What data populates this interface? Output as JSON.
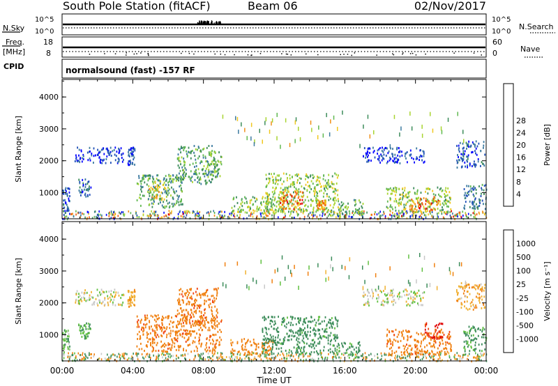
{
  "header": {
    "title": "South Pole Station (fitACF)",
    "beam": "Beam 06",
    "date": "02/Nov/2017"
  },
  "strip_panels": {
    "nsky": {
      "label": "N.Sky",
      "ticks": [
        "10^5",
        "10^0"
      ]
    },
    "nsearch": {
      "label": "N.Search",
      "ticks": [
        "10^5",
        "10^0"
      ]
    },
    "freq": {
      "label_top": "Freq.",
      "label_bottom": "[MHz]",
      "ticks": [
        "18",
        "8"
      ]
    },
    "nave": {
      "label": "Nave",
      "ticks": [
        "60",
        "0"
      ]
    },
    "cpid": {
      "label": "CPID",
      "value": "normalsound (fast) -157 RF"
    }
  },
  "chart_data": [
    {
      "type": "heatmap",
      "name": "power",
      "ylabel": "Slant Range [km]",
      "xlabel": "Time UT",
      "xlim": [
        0,
        24
      ],
      "ylim": [
        180,
        4550
      ],
      "x_ticks": [
        "00:00",
        "04:00",
        "08:00",
        "12:00",
        "16:00",
        "20:00",
        "00:00"
      ],
      "y_ticks": [
        "1000",
        "2000",
        "3000",
        "4000"
      ],
      "colorbar": {
        "label": "Power [dB]",
        "range": [
          0,
          32
        ],
        "ticks": [
          "4",
          "8",
          "12",
          "16",
          "20",
          "24",
          "28"
        ],
        "colors": [
          "#0000ff",
          "#2050b8",
          "#3c7aa0",
          "#3c8c5a",
          "#60b850",
          "#a8d430",
          "#f0c820",
          "#f09018",
          "#f05a10",
          "#e00000"
        ]
      },
      "clusters": [
        {
          "t0": 0.0,
          "t1": 0.4,
          "r0": 450,
          "r1": 1200,
          "v": 6
        },
        {
          "t0": 0.7,
          "t1": 3.5,
          "r0": 1950,
          "r1": 2450,
          "v": 4
        },
        {
          "t0": 0.9,
          "t1": 1.6,
          "r0": 900,
          "r1": 1450,
          "v": 7
        },
        {
          "t0": 3.7,
          "t1": 4.1,
          "r0": 1900,
          "r1": 2450,
          "v": 4
        },
        {
          "t0": 4.2,
          "t1": 6.8,
          "r0": 550,
          "r1": 1600,
          "v": 12
        },
        {
          "t0": 4.8,
          "t1": 5.9,
          "r0": 800,
          "r1": 1400,
          "v": 20
        },
        {
          "t0": 6.5,
          "t1": 8.7,
          "r0": 1300,
          "r1": 2500,
          "v": 12
        },
        {
          "t0": 8.2,
          "t1": 9.0,
          "r0": 1500,
          "r1": 2300,
          "v": 14
        },
        {
          "t0": 9.5,
          "t1": 12.5,
          "r0": 400,
          "r1": 900,
          "v": 16
        },
        {
          "t0": 11.5,
          "t1": 15.6,
          "r0": 400,
          "r1": 1650,
          "v": 16
        },
        {
          "t0": 12.3,
          "t1": 13.6,
          "r0": 500,
          "r1": 1100,
          "v": 26
        },
        {
          "t0": 14.4,
          "t1": 14.9,
          "r0": 500,
          "r1": 800,
          "v": 24
        },
        {
          "t0": 15.6,
          "t1": 17.0,
          "r0": 300,
          "r1": 800,
          "v": 14
        },
        {
          "t0": 17.0,
          "t1": 20.5,
          "r0": 1950,
          "r1": 2450,
          "v": 4
        },
        {
          "t0": 18.3,
          "t1": 22.0,
          "r0": 400,
          "r1": 1200,
          "v": 16
        },
        {
          "t0": 19.6,
          "t1": 21.3,
          "r0": 450,
          "r1": 900,
          "v": 26
        },
        {
          "t0": 22.3,
          "t1": 23.9,
          "r0": 1800,
          "r1": 2650,
          "v": 6
        },
        {
          "t0": 22.7,
          "t1": 24.0,
          "r0": 500,
          "r1": 1300,
          "v": 8
        }
      ]
    },
    {
      "type": "heatmap",
      "name": "velocity",
      "ylabel": "Slant Range [km]",
      "xlabel": "Time UT",
      "xlim": [
        0,
        24
      ],
      "ylim": [
        180,
        4550
      ],
      "x_ticks": [
        "00:00",
        "04:00",
        "08:00",
        "12:00",
        "16:00",
        "20:00",
        "00:00"
      ],
      "y_ticks": [
        "1000",
        "2000",
        "3000",
        "4000"
      ],
      "colorbar": {
        "label": "Velocity [m s⁻¹]",
        "range": [
          -1200,
          1200
        ],
        "ticks": [
          "1000",
          "500",
          "100",
          "25",
          "-25",
          "-100",
          "-500",
          "-1000"
        ],
        "colors": [
          "#e00000",
          "#f04010",
          "#f08010",
          "#f0b030",
          "#c8c8c8",
          "#60c040",
          "#3c8c5a",
          "#2c6ea0",
          "#0000ff"
        ]
      },
      "clusters": [
        {
          "t0": 0.0,
          "t1": 0.4,
          "r0": 450,
          "r1": 1200,
          "v": 60
        },
        {
          "t0": 0.7,
          "t1": 3.5,
          "r0": 1950,
          "r1": 2450,
          "v": 0
        },
        {
          "t0": 0.9,
          "t1": 1.6,
          "r0": 900,
          "r1": 1400,
          "v": 80
        },
        {
          "t0": 3.7,
          "t1": 4.1,
          "r0": 1900,
          "r1": 2450,
          "v": -90
        },
        {
          "t0": 4.2,
          "t1": 9.0,
          "r0": 500,
          "r1": 1650,
          "v": -350
        },
        {
          "t0": 6.5,
          "t1": 8.8,
          "r0": 1300,
          "r1": 2500,
          "v": -350
        },
        {
          "t0": 9.5,
          "t1": 12.0,
          "r0": 400,
          "r1": 900,
          "v": -200
        },
        {
          "t0": 11.3,
          "t1": 15.6,
          "r0": 400,
          "r1": 1600,
          "v": 200
        },
        {
          "t0": 15.6,
          "t1": 17.0,
          "r0": 300,
          "r1": 800,
          "v": 150
        },
        {
          "t0": 17.0,
          "t1": 20.5,
          "r0": 1950,
          "r1": 2450,
          "v": 0
        },
        {
          "t0": 18.3,
          "t1": 22.0,
          "r0": 400,
          "r1": 1200,
          "v": -350
        },
        {
          "t0": 20.5,
          "t1": 21.5,
          "r0": 900,
          "r1": 1400,
          "v": -900
        },
        {
          "t0": 22.3,
          "t1": 23.9,
          "r0": 1800,
          "r1": 2650,
          "v": -80
        },
        {
          "t0": 22.7,
          "t1": 24.0,
          "r0": 500,
          "r1": 1300,
          "v": 150
        }
      ]
    }
  ]
}
